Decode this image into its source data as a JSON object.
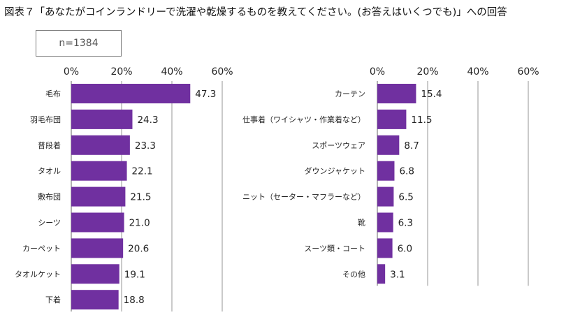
{
  "title": "図表７「あなたがコインランドリーで洗濯や乾燥するものを教えてください。(お答えはいくつでも)」への回答",
  "sample_label": "n=1384",
  "colors": {
    "bar": "#7030a0",
    "grid": "#a6a6a6",
    "axis": "#7f7f7f"
  },
  "chart_data": [
    {
      "type": "bar",
      "orientation": "horizontal",
      "xlim": [
        0,
        60
      ],
      "ticks": [
        0,
        20,
        40,
        60
      ],
      "tick_labels": [
        "0%",
        "20%",
        "40%",
        "60%"
      ],
      "categories": [
        "毛布",
        "羽毛布団",
        "普段着",
        "タオル",
        "敷布団",
        "シーツ",
        "カーペット",
        "タオルケット",
        "下着"
      ],
      "values": [
        47.3,
        24.3,
        23.3,
        22.1,
        21.5,
        21.0,
        20.6,
        19.1,
        18.8
      ],
      "value_labels": [
        "47.3",
        "24.3",
        "23.3",
        "22.1",
        "21.5",
        "21.0",
        "20.6",
        "19.1",
        "18.8"
      ]
    },
    {
      "type": "bar",
      "orientation": "horizontal",
      "xlim": [
        0,
        60
      ],
      "ticks": [
        0,
        20,
        40,
        60
      ],
      "tick_labels": [
        "0%",
        "20%",
        "40%",
        "60%"
      ],
      "categories": [
        "カーテン",
        "仕事着（ワイシャツ・作業着など）",
        "スポーツウェア",
        "ダウンジャケット",
        "ニット（セーター・マフラーなど）",
        "靴",
        "スーツ類・コート",
        "その他"
      ],
      "values": [
        15.4,
        11.5,
        8.7,
        6.8,
        6.5,
        6.3,
        6.0,
        3.1
      ],
      "value_labels": [
        "15.4",
        "11.5",
        "8.7",
        "6.8",
        "6.5",
        "6.3",
        "6.0",
        "3.1"
      ]
    }
  ]
}
